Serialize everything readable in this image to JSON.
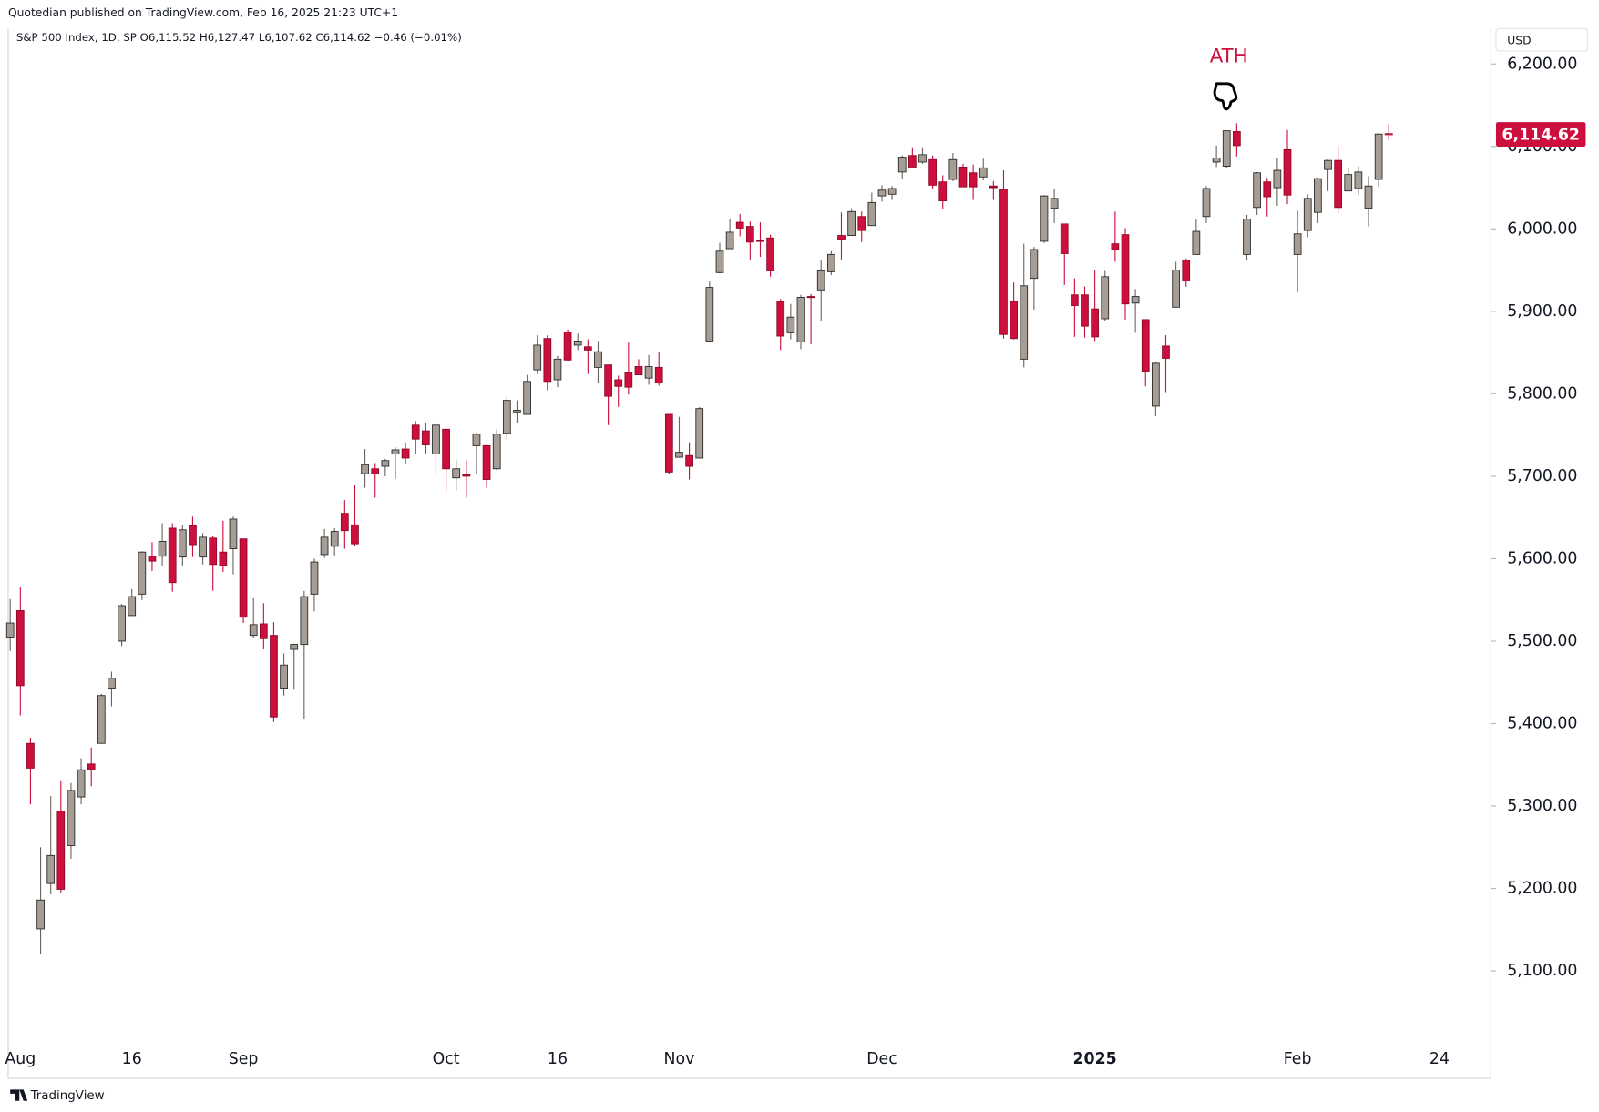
{
  "header": "Quotedian published on TradingView.com, Feb 16, 2025 21:23 UTC+1",
  "footer": "TradingView",
  "chart_data": {
    "type": "candlestick",
    "legend": "S&P 500 Index, 1D, SP O6,115.52 H6,127.47 L6,107.62 C6,114.62 −0.46 (−0.01%)",
    "currency": "USD",
    "annotation": "ATH",
    "last_price_label": "6,114.62",
    "up_color": "#a69e95",
    "down_color": "#cc0f3c",
    "categories": [
      null,
      "Aug",
      null,
      null,
      null,
      null,
      null,
      null,
      null,
      null,
      null,
      null,
      "16",
      null,
      null,
      null,
      null,
      null,
      null,
      null,
      null,
      null,
      null,
      "Sep",
      null,
      null,
      null,
      null,
      null,
      null,
      null,
      null,
      null,
      null,
      null,
      null,
      null,
      null,
      null,
      null,
      null,
      null,
      null,
      "Oct",
      null,
      null,
      null,
      null,
      null,
      null,
      null,
      null,
      null,
      null,
      "16",
      null,
      null,
      null,
      null,
      null,
      null,
      null,
      null,
      null,
      null,
      null,
      "Nov",
      null,
      null,
      null,
      null,
      null,
      null,
      null,
      null,
      null,
      null,
      null,
      null,
      null,
      null,
      null,
      null,
      null,
      null,
      null,
      "Dec",
      null,
      null,
      null,
      null,
      null,
      null,
      null,
      null,
      null,
      null,
      null,
      null,
      null,
      null,
      null,
      null,
      null,
      null,
      null,
      null,
      "2025",
      null,
      null,
      null,
      null,
      null,
      null,
      null,
      null,
      null,
      null,
      null,
      null,
      null,
      null,
      null,
      null,
      null,
      null,
      null,
      "Feb",
      null,
      null,
      null,
      null,
      null,
      null,
      null,
      null,
      null,
      null,
      null,
      null,
      null,
      "24"
    ],
    "open": [
      5505,
      5537,
      5376,
      5151,
      5206,
      5294,
      5252,
      5311,
      5351,
      5376,
      5443,
      5500,
      5531,
      5557,
      5603,
      5603,
      5637,
      5602,
      5640,
      5602,
      5625,
      5608,
      5612,
      5624,
      5507,
      5521,
      5507,
      5443,
      5490,
      5496,
      5557,
      5605,
      5615,
      5655,
      5641,
      5703,
      5709,
      5712,
      5727,
      5733,
      5762,
      5755,
      5727,
      5757,
      5698,
      5702,
      5737,
      5737,
      5709,
      5752,
      5778,
      5775,
      5829,
      5867,
      5817,
      5875,
      5859,
      5857,
      5832,
      5835,
      5817,
      5826,
      5833,
      5819,
      5832,
      5775,
      5723,
      5725,
      5722,
      5864,
      5947,
      5976,
      6008,
      6003,
      5986,
      5989,
      5912,
      5874,
      5863,
      5918,
      5926,
      5948,
      5992,
      5992,
      6015,
      6004,
      6040,
      6042,
      6069,
      6089,
      6081,
      6084,
      6057,
      6060,
      6075,
      6068,
      6063,
      6052,
      6048,
      5912,
      5842,
      5940,
      5985,
      6025,
      6006,
      5920,
      5920,
      5903,
      5891,
      5982,
      5993,
      5910,
      5890,
      5785,
      5858,
      5905,
      5962,
      5969,
      6015,
      6081,
      6076,
      6118,
      5969,
      6026,
      6057,
      6050,
      6096,
      5969,
      5998,
      6020,
      6072,
      6083,
      6046,
      6049,
      6025,
      6060,
      6115.52,
      null,
      null,
      null,
      null,
      null
    ],
    "high": [
      5551,
      5566,
      5383,
      5250,
      5312,
      5330,
      5328,
      5358,
      5371,
      5436,
      5463,
      5545,
      5563,
      5609,
      5620,
      5643,
      5643,
      5641,
      5651,
      5631,
      5627,
      5646,
      5651,
      5624,
      5552,
      5546,
      5523,
      5485,
      5497,
      5561,
      5600,
      5636,
      5637,
      5671,
      5690,
      5733,
      5716,
      5721,
      5735,
      5741,
      5767,
      5765,
      5765,
      5757,
      5720,
      5719,
      5753,
      5739,
      5757,
      5796,
      5792,
      5823,
      5871,
      5871,
      5846,
      5878,
      5873,
      5866,
      5864,
      5835,
      5822,
      5862,
      5842,
      5847,
      5850,
      5775,
      5772,
      5741,
      5784,
      5936,
      5983,
      6012,
      6018,
      6009,
      6008,
      5993,
      5915,
      5909,
      5920,
      5921,
      5962,
      5973,
      6020,
      6025,
      6021,
      6044,
      6053,
      6052,
      6089,
      6099,
      6099,
      6089,
      6065,
      6092,
      6079,
      6078,
      6085,
      6058,
      6071,
      5935,
      5982,
      5978,
      6041,
      6049,
      6006,
      5940,
      5930,
      5950,
      5949,
      6021,
      6001,
      5927,
      5890,
      5838,
      5871,
      5960,
      5964,
      6012,
      6052,
      6101,
      6119,
      6128,
      6017,
      6069,
      6062,
      6086,
      6120,
      6022,
      6042,
      6062,
      6084,
      6101,
      6073,
      6076,
      6064,
      6116,
      6127.47,
      null,
      null,
      null,
      null,
      null
    ],
    "low": [
      5488,
      5410,
      5302,
      5120,
      5193,
      5195,
      5236,
      5302,
      5324,
      5376,
      5421,
      5494,
      5531,
      5550,
      5585,
      5591,
      5560,
      5591,
      5602,
      5593,
      5561,
      5584,
      5581,
      5522,
      5504,
      5490,
      5402,
      5434,
      5441,
      5406,
      5536,
      5601,
      5604,
      5612,
      5615,
      5686,
      5674,
      5700,
      5697,
      5715,
      5727,
      5727,
      5703,
      5681,
      5683,
      5674,
      5702,
      5686,
      5707,
      5745,
      5764,
      5775,
      5824,
      5804,
      5808,
      5840,
      5853,
      5824,
      5813,
      5762,
      5784,
      5799,
      5823,
      5811,
      5810,
      5702,
      5723,
      5696,
      5722,
      5864,
      5946,
      5976,
      5991,
      5963,
      5966,
      5942,
      5853,
      5866,
      5854,
      5860,
      5888,
      5944,
      5963,
      5992,
      5984,
      6004,
      6033,
      6035,
      6061,
      6075,
      6079,
      6048,
      6024,
      6058,
      6051,
      6035,
      6059,
      6035,
      5867,
      5866,
      5832,
      5902,
      5983,
      6007,
      5932,
      5869,
      5868,
      5864,
      5888,
      5960,
      5890,
      5874,
      5809,
      5773,
      5802,
      5905,
      5930,
      5969,
      6007,
      6075,
      6074,
      6088,
      5962,
      6017,
      6015,
      6028,
      6030,
      5923,
      5990,
      6007,
      6046,
      6019,
      6046,
      6042,
      6003,
      6051,
      6107.62,
      null,
      null,
      null,
      null,
      null
    ],
    "close": [
      5522,
      5446,
      5346,
      5186,
      5240,
      5199,
      5319,
      5344,
      5344,
      5434,
      5455,
      5543,
      5554,
      5608,
      5597,
      5621,
      5571,
      5635,
      5617,
      5626,
      5593,
      5592,
      5648,
      5529,
      5520,
      5503,
      5408,
      5471,
      5496,
      5554,
      5596,
      5626,
      5633,
      5634,
      5618,
      5714,
      5703,
      5719,
      5732,
      5722,
      5745,
      5738,
      5762,
      5709,
      5709,
      5700,
      5751,
      5696,
      5751,
      5792,
      5780,
      5815,
      5859,
      5815,
      5842,
      5841,
      5864,
      5853,
      5851,
      5797,
      5809,
      5808,
      5823,
      5833,
      5813,
      5705,
      5729,
      5712,
      5782,
      5929,
      5973,
      5996,
      6001,
      5984,
      5985,
      5949,
      5870,
      5893,
      5917,
      5917,
      5949,
      5969,
      5987,
      6021,
      5998,
      6032,
      6047,
      6049,
      6087,
      6075,
      6090,
      6053,
      6034,
      6084,
      6051,
      6051,
      6074,
      6050,
      5872,
      5867,
      5931,
      5975,
      6040,
      6037,
      5970,
      5907,
      5882,
      5869,
      5942,
      5975,
      5909,
      5918,
      5827,
      5837,
      5843,
      5950,
      5937,
      5997,
      6049,
      6086,
      6119,
      6101,
      6012,
      6068,
      6039,
      6071,
      6041,
      5994,
      6037,
      6061,
      6083,
      6026,
      6066,
      6069,
      6052,
      6115,
      6114.62,
      null,
      null,
      null,
      null,
      null
    ],
    "ylim": [
      5008,
      6243
    ],
    "yticks": [
      {
        "value": 5100,
        "label": "5,100.00"
      },
      {
        "value": 5200,
        "label": "5,200.00"
      },
      {
        "value": 5300,
        "label": "5,300.00"
      },
      {
        "value": 5400,
        "label": "5,400.00"
      },
      {
        "value": 5500,
        "label": "5,500.00"
      },
      {
        "value": 5600,
        "label": "5,600.00"
      },
      {
        "value": 5700,
        "label": "5,700.00"
      },
      {
        "value": 5800,
        "label": "5,800.00"
      },
      {
        "value": 5900,
        "label": "5,900.00"
      },
      {
        "value": 6000,
        "label": "6,000.00"
      },
      {
        "value": 6100,
        "label": "6,100.00"
      },
      {
        "value": 6200,
        "label": "6,200.00"
      }
    ]
  }
}
